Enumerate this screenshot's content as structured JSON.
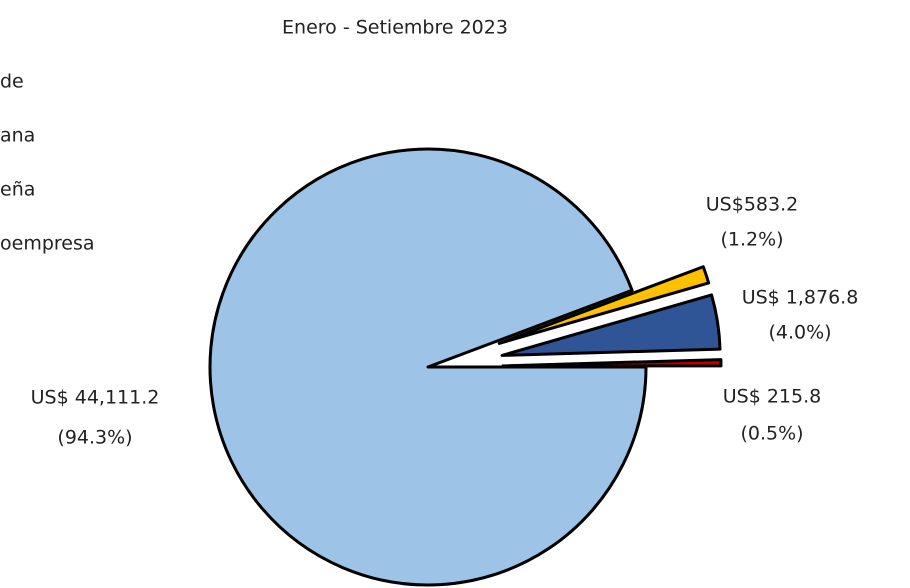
{
  "chart_data": {
    "type": "pie",
    "title": "Enero - Setiembre 2023",
    "categories": [
      "de",
      "ana",
      "eña",
      "oempresa"
    ],
    "values": [
      44111.2,
      583.2,
      1876.8,
      215.8
    ],
    "value_labels": [
      "US$ 44,111.2",
      "US$583.2",
      "US$ 1,876.8",
      "US$ 215.8"
    ],
    "percent_labels": [
      "(94.3%)",
      "(1.2%)",
      "(4.0%)",
      "(0.5%)"
    ],
    "colors": [
      "#9dc3e6",
      "#ffc000",
      "#2f5597",
      "#c00000"
    ]
  }
}
